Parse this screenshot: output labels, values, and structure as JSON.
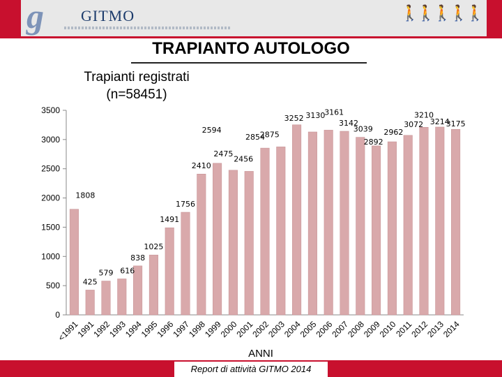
{
  "header": {
    "logo_text": "GITMO",
    "logo_mark": "g"
  },
  "page": {
    "title": "TRAPIANTO AUTOLOGO",
    "subtitle_line1": "Trapianti registrati",
    "subtitle_line2": "(n=58451)",
    "footer": "Report di attività GITMO 2014"
  },
  "colors": {
    "bar": "#d9a9ab",
    "bar_stroke": "#c48f92",
    "brand_red": "#c8102e",
    "logo_blue": "#1b3a6b"
  },
  "chart_data": {
    "type": "bar",
    "categories": [
      "<1991",
      "1991",
      "1992",
      "1993",
      "1994",
      "1995",
      "1996",
      "1997",
      "1998",
      "1999",
      "2000",
      "2001",
      "2002",
      "2003",
      "2004",
      "2005",
      "2006",
      "2007",
      "2008",
      "2009",
      "2010",
      "2011",
      "2012",
      "2013",
      "2014"
    ],
    "values": [
      1808,
      425,
      579,
      616,
      838,
      1025,
      1491,
      1756,
      2410,
      2594,
      2475,
      2456,
      2854,
      2875,
      3252,
      3130,
      3161,
      3142,
      3039,
      2892,
      2962,
      3072,
      3210,
      3214,
      3175
    ],
    "xlabel": "ANNI",
    "ylabel": "",
    "ylim": [
      0,
      3500
    ],
    "yticks": [
      0,
      500,
      1000,
      1500,
      2000,
      2500,
      3000,
      3500
    ],
    "grid": false,
    "legend": "none"
  }
}
